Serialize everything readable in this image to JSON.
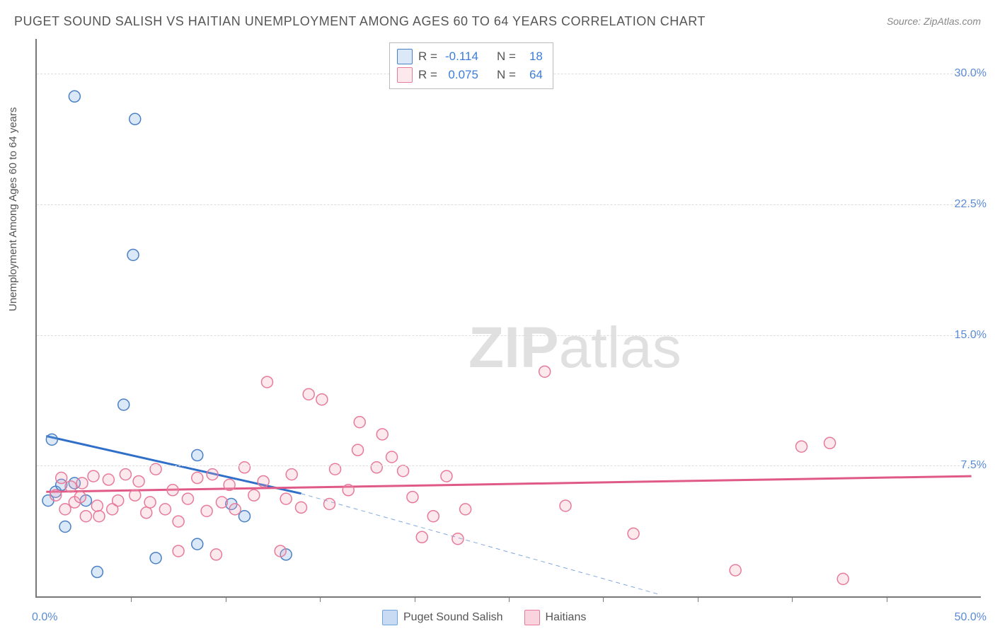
{
  "title": "PUGET SOUND SALISH VS HAITIAN UNEMPLOYMENT AMONG AGES 60 TO 64 YEARS CORRELATION CHART",
  "source": "Source: ZipAtlas.com",
  "watermark_bold": "ZIP",
  "watermark_light": "atlas",
  "y_axis_label": "Unemployment Among Ages 60 to 64 years",
  "chart": {
    "type": "scatter",
    "background_color": "#ffffff",
    "grid_color": "#dddddd",
    "axis_color": "#777777",
    "xlim": [
      0,
      50
    ],
    "ylim": [
      0,
      32
    ],
    "x_ticks_major": [
      0,
      50
    ],
    "x_ticks_minor": [
      5,
      10,
      15,
      20,
      25,
      30,
      35,
      40,
      45
    ],
    "x_tick_labels": {
      "0": "0.0%",
      "50": "50.0%"
    },
    "y_ticks": [
      7.5,
      15.0,
      22.5,
      30.0
    ],
    "y_tick_labels": {
      "7.5": "7.5%",
      "15.0": "15.0%",
      "22.5": "22.5%",
      "30.0": "30.0%"
    },
    "marker_radius": 8,
    "marker_stroke_width": 1.5,
    "marker_fill_opacity": 0.25,
    "series": [
      {
        "name": "Puget Sound Salish",
        "color": "#6fa4e0",
        "stroke": "#4a80c5",
        "trend_color": "#2f6fc9",
        "R_label": "R =",
        "R": "-0.114",
        "N_label": "N =",
        "N": "18",
        "trend": {
          "x1": 0.5,
          "y1": 9.2,
          "x2": 14.0,
          "y2": 5.9,
          "stroke_width": 3
        },
        "trend_ext": {
          "x1": 14.0,
          "y1": 5.9,
          "x2": 33.0,
          "y2": 0.1,
          "dash": "6,5",
          "stroke_width": 1
        },
        "points": [
          [
            2.0,
            28.7
          ],
          [
            5.2,
            27.4
          ],
          [
            5.1,
            19.6
          ],
          [
            4.6,
            11.0
          ],
          [
            0.8,
            9.0
          ],
          [
            1.0,
            6.0
          ],
          [
            1.3,
            6.4
          ],
          [
            0.6,
            5.5
          ],
          [
            1.5,
            4.0
          ],
          [
            2.0,
            6.5
          ],
          [
            8.5,
            8.1
          ],
          [
            8.5,
            3.0
          ],
          [
            6.3,
            2.2
          ],
          [
            10.3,
            5.3
          ],
          [
            13.2,
            2.4
          ],
          [
            11.0,
            4.6
          ],
          [
            3.2,
            1.4
          ],
          [
            2.6,
            5.5
          ]
        ]
      },
      {
        "name": "Haitians",
        "color": "#f1a7bb",
        "stroke": "#e77a9a",
        "trend_color": "#e05a88",
        "R_label": "R =",
        "R": "0.075",
        "N_label": "N =",
        "N": "64",
        "trend": {
          "x1": 0.5,
          "y1": 6.0,
          "x2": 49.5,
          "y2": 6.9,
          "stroke_width": 3
        },
        "points": [
          [
            1.0,
            5.8
          ],
          [
            1.3,
            6.8
          ],
          [
            1.5,
            5.0
          ],
          [
            1.8,
            6.3
          ],
          [
            2.0,
            5.4
          ],
          [
            2.3,
            5.7
          ],
          [
            2.4,
            6.5
          ],
          [
            2.6,
            4.6
          ],
          [
            3.0,
            6.9
          ],
          [
            3.2,
            5.2
          ],
          [
            3.3,
            4.6
          ],
          [
            3.8,
            6.7
          ],
          [
            4.0,
            5.0
          ],
          [
            4.3,
            5.5
          ],
          [
            4.7,
            7.0
          ],
          [
            5.2,
            5.8
          ],
          [
            5.4,
            6.6
          ],
          [
            5.8,
            4.8
          ],
          [
            6.0,
            5.4
          ],
          [
            6.3,
            7.3
          ],
          [
            6.8,
            5.0
          ],
          [
            7.2,
            6.1
          ],
          [
            7.5,
            4.3
          ],
          [
            7.5,
            2.6
          ],
          [
            8.0,
            5.6
          ],
          [
            8.5,
            6.8
          ],
          [
            9.0,
            4.9
          ],
          [
            9.3,
            7.0
          ],
          [
            9.5,
            2.4
          ],
          [
            9.8,
            5.4
          ],
          [
            10.2,
            6.4
          ],
          [
            10.5,
            5.0
          ],
          [
            11.0,
            7.4
          ],
          [
            11.5,
            5.8
          ],
          [
            12.0,
            6.6
          ],
          [
            12.2,
            12.3
          ],
          [
            12.9,
            2.6
          ],
          [
            13.2,
            5.6
          ],
          [
            13.5,
            7.0
          ],
          [
            14.0,
            5.1
          ],
          [
            14.4,
            11.6
          ],
          [
            15.1,
            11.3
          ],
          [
            15.5,
            5.3
          ],
          [
            15.8,
            7.3
          ],
          [
            16.5,
            6.1
          ],
          [
            17.0,
            8.4
          ],
          [
            17.1,
            10.0
          ],
          [
            18.0,
            7.4
          ],
          [
            18.3,
            9.3
          ],
          [
            18.8,
            8.0
          ],
          [
            19.4,
            7.2
          ],
          [
            19.9,
            5.7
          ],
          [
            20.4,
            3.4
          ],
          [
            21.0,
            4.6
          ],
          [
            21.7,
            6.9
          ],
          [
            22.3,
            3.3
          ],
          [
            22.7,
            5.0
          ],
          [
            26.9,
            12.9
          ],
          [
            28.0,
            5.2
          ],
          [
            31.6,
            3.6
          ],
          [
            37.0,
            1.5
          ],
          [
            40.5,
            8.6
          ],
          [
            42.0,
            8.8
          ],
          [
            42.7,
            1.0
          ]
        ]
      }
    ]
  },
  "bottom_legend": [
    {
      "label": "Puget Sound Salish",
      "fill": "#c8dbf3",
      "stroke": "#6fa4e0"
    },
    {
      "label": "Haitians",
      "fill": "#f9d4de",
      "stroke": "#e77a9a"
    }
  ]
}
